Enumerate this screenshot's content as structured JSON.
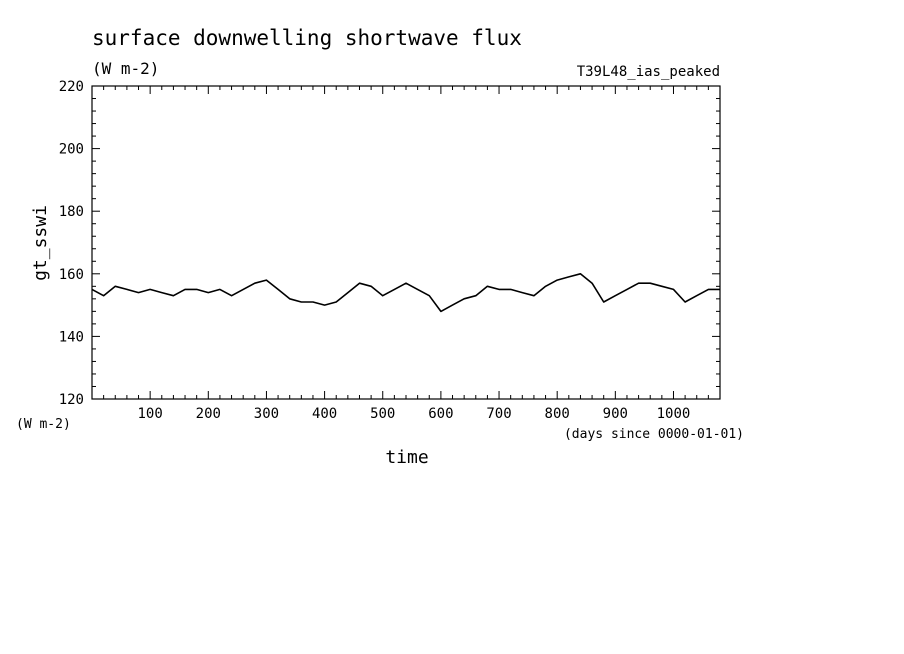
{
  "chart_data": {
    "type": "line",
    "title": "surface downwelling shortwave flux",
    "subtitle": "(W m-2)",
    "experiment": "T39L48_ias_peaked",
    "ylabel": "gt_sswi",
    "yunits": "(W m-2)",
    "xlabel": "time",
    "xunits": "(days since 0000-01-01)",
    "xlim": [
      0,
      1080
    ],
    "ylim": [
      120,
      220
    ],
    "x_ticks": [
      100,
      200,
      300,
      400,
      500,
      600,
      700,
      800,
      900,
      1000
    ],
    "y_ticks": [
      120,
      140,
      160,
      180,
      200,
      220
    ],
    "grid": false,
    "series": [
      {
        "color": "#000000",
        "x": [
          0,
          20,
          40,
          60,
          80,
          100,
          120,
          140,
          160,
          180,
          200,
          220,
          240,
          260,
          280,
          300,
          320,
          340,
          360,
          380,
          400,
          420,
          440,
          460,
          480,
          500,
          520,
          540,
          560,
          580,
          600,
          620,
          640,
          660,
          680,
          700,
          720,
          740,
          760,
          780,
          800,
          820,
          840,
          860,
          880,
          900,
          920,
          940,
          960,
          980,
          1000,
          1020,
          1040,
          1060,
          1080
        ],
        "y": [
          155,
          153,
          156,
          155,
          154,
          155,
          154,
          153,
          155,
          155,
          154,
          155,
          153,
          155,
          157,
          158,
          155,
          152,
          151,
          151,
          150,
          151,
          154,
          157,
          156,
          153,
          155,
          157,
          155,
          153,
          148,
          150,
          152,
          153,
          156,
          155,
          155,
          154,
          153,
          156,
          158,
          159,
          160,
          157,
          151,
          153,
          155,
          157,
          157,
          156,
          155,
          151,
          153,
          155,
          155
        ]
      }
    ]
  }
}
